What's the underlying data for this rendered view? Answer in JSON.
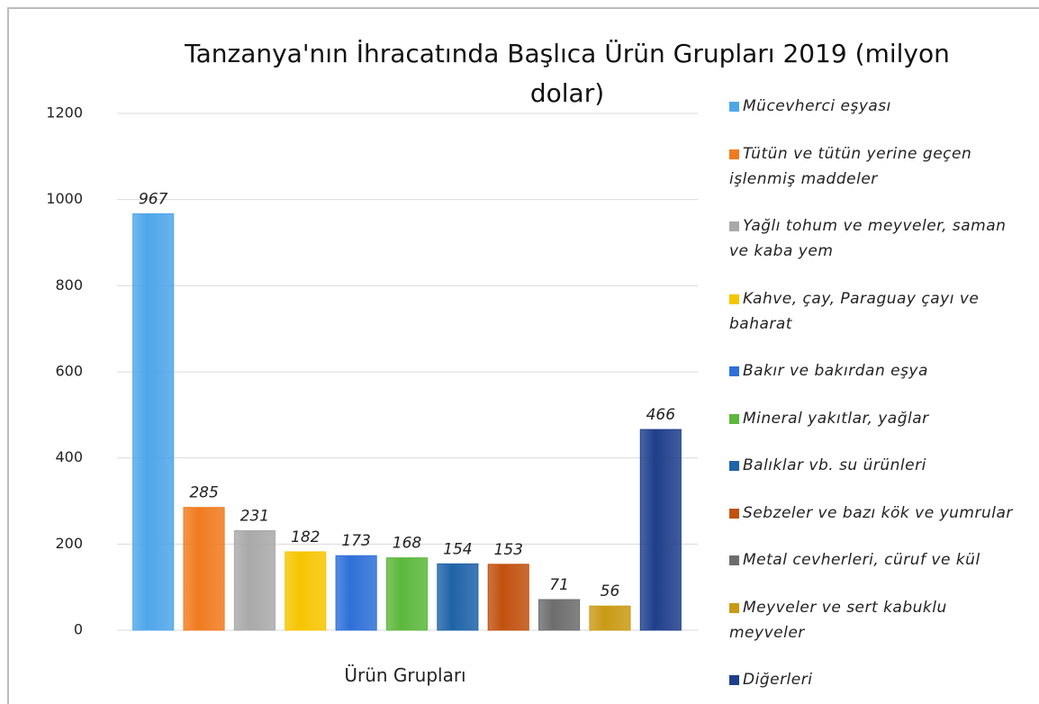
{
  "chart_data": {
    "type": "bar",
    "title": "Tanzanya'nın İhracatında Başlıca Ürün Grupları 2019 (milyon dolar)",
    "x_label": "Ürün Grupları",
    "categories": [
      "Mücevherci eşyası",
      "Tütün ve tütün yerine geçen işlenmiş maddeler",
      "Yağlı tohum ve meyveler, saman ve kaba yem",
      "Kahve, çay, Paraguay çayı ve baharat",
      "Bakır ve bakırdan eşya",
      "Mineral yakıtlar, yağlar",
      "Balıklar vb. su ürünleri",
      "Sebzeler ve bazı kök ve yumrular",
      "Metal cevherleri, cüruf ve kül",
      "Meyveler ve sert kabuklu meyveler",
      "Diğerleri"
    ],
    "values": [
      967,
      285,
      231,
      182,
      173,
      168,
      154,
      153,
      71,
      56,
      466
    ],
    "colors": [
      "#4ea6ea",
      "#f07b1e",
      "#a9a9a9",
      "#f6c500",
      "#2f70d8",
      "#5cb83c",
      "#1f63a8",
      "#c1510f",
      "#6d6d6d",
      "#c99a14",
      "#1f3f8c"
    ],
    "ylim": [
      0,
      1200
    ],
    "yticks": [
      0,
      200,
      400,
      600,
      800,
      1000,
      1200
    ],
    "grid": true
  }
}
